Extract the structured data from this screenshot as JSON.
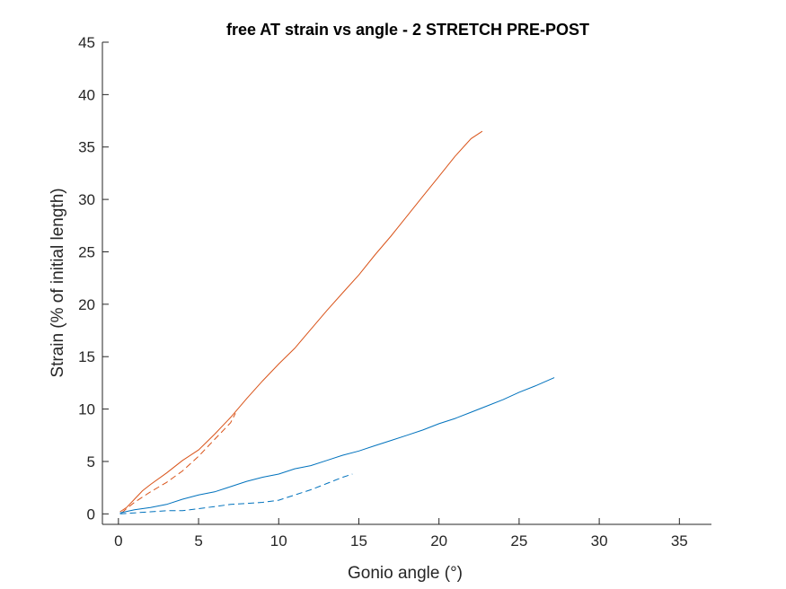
{
  "chart_data": {
    "type": "line",
    "title": "free AT strain vs angle - 2 STRETCH PRE-POST",
    "xlabel": "Gonio angle (°)",
    "ylabel": "Strain (% of initial length)",
    "xlim": [
      -1,
      37
    ],
    "ylim": [
      -1,
      45
    ],
    "xticks": [
      0,
      5,
      10,
      15,
      20,
      25,
      30,
      35
    ],
    "yticks": [
      0,
      5,
      10,
      15,
      20,
      25,
      30,
      35,
      40,
      45
    ],
    "grid": false,
    "legend": "none",
    "series": [
      {
        "color": "#D95319",
        "dash": "solid",
        "x": [
          0.1,
          0.5,
          1.0,
          1.5,
          2.0,
          3.0,
          4.0,
          5.0,
          6.0,
          7.0,
          8.0,
          9.0,
          10.0,
          11.0,
          12.0,
          13.0,
          14.0,
          15.0,
          16.0,
          17.0,
          18.0,
          19.0,
          20.0,
          21.0,
          22.0,
          22.7
        ],
        "y": [
          0.2,
          0.6,
          1.4,
          2.2,
          2.8,
          3.9,
          5.1,
          6.1,
          7.6,
          9.2,
          11.0,
          12.7,
          14.3,
          15.8,
          17.6,
          19.4,
          21.1,
          22.8,
          24.7,
          26.5,
          28.4,
          30.3,
          32.2,
          34.1,
          35.8,
          36.5
        ]
      },
      {
        "color": "#D95319",
        "dash": "dashed",
        "x": [
          0.2,
          0.5,
          1.0,
          1.5,
          2.0,
          3.0,
          4.0,
          5.0,
          6.0,
          7.0,
          7.3
        ],
        "y": [
          0.1,
          0.5,
          1.1,
          1.6,
          2.1,
          3.0,
          4.1,
          5.5,
          7.1,
          8.7,
          9.6
        ]
      },
      {
        "color": "#0072BD",
        "dash": "solid",
        "x": [
          0.1,
          1.0,
          2.0,
          3.0,
          4.0,
          5.0,
          6.0,
          7.0,
          8.0,
          9.0,
          10.0,
          11.0,
          12.0,
          13.0,
          14.0,
          15.0,
          16.0,
          17.0,
          18.0,
          19.0,
          20.0,
          21.0,
          22.0,
          23.0,
          24.0,
          25.0,
          26.0,
          27.2
        ],
        "y": [
          0.1,
          0.4,
          0.6,
          0.9,
          1.4,
          1.8,
          2.1,
          2.6,
          3.1,
          3.5,
          3.8,
          4.3,
          4.6,
          5.1,
          5.6,
          6.0,
          6.5,
          7.0,
          7.5,
          8.0,
          8.6,
          9.1,
          9.7,
          10.3,
          10.9,
          11.6,
          12.2,
          13.0
        ]
      },
      {
        "color": "#0072BD",
        "dash": "dashed",
        "x": [
          0.1,
          1.0,
          2.0,
          3.0,
          4.0,
          5.0,
          6.0,
          7.0,
          8.0,
          9.0,
          10.0,
          11.0,
          12.0,
          13.0,
          14.0,
          14.6
        ],
        "y": [
          0.0,
          0.1,
          0.2,
          0.3,
          0.3,
          0.5,
          0.7,
          0.9,
          1.0,
          1.1,
          1.3,
          1.8,
          2.3,
          2.9,
          3.5,
          3.8
        ]
      }
    ]
  }
}
